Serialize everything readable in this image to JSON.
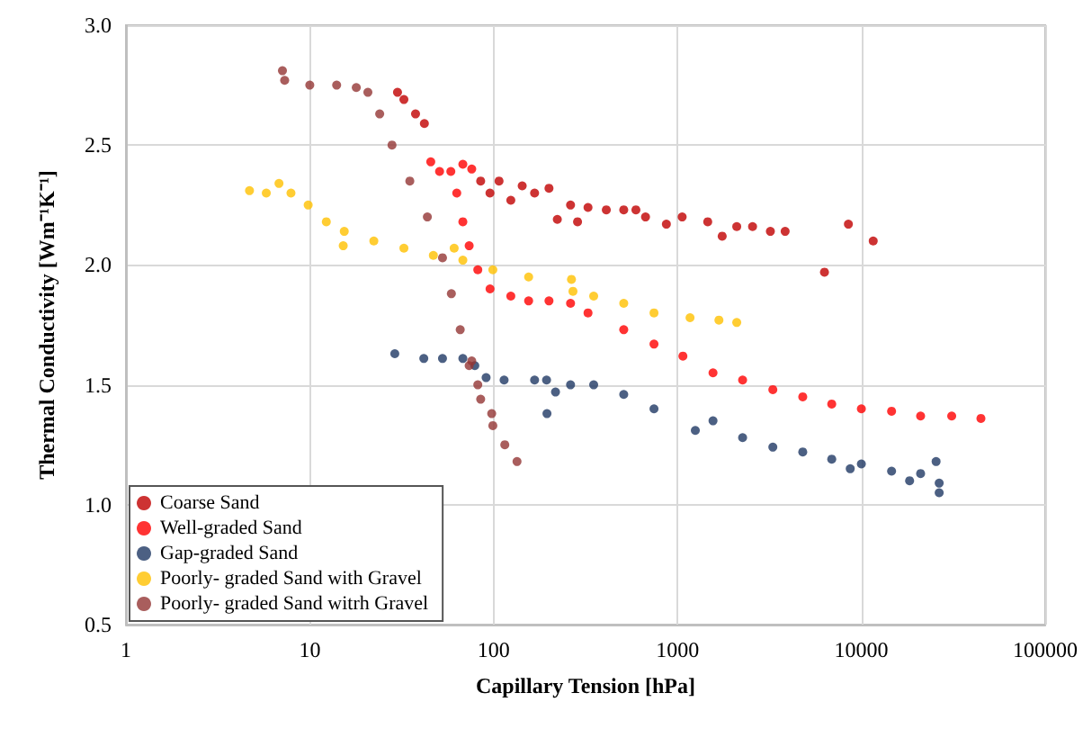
{
  "chart_data": {
    "type": "scatter",
    "xlabel": "Capillary Tension [hPa]",
    "ylabel": "Thermal Conductivity [Wm⁻¹K⁻¹]",
    "log": "x",
    "grid": true,
    "legend": "bottom left",
    "marker": "circle",
    "xlim": [
      1,
      100000
    ],
    "xticks": [
      1,
      10,
      100,
      1000,
      10000,
      100000
    ],
    "ylim": [
      0.5,
      3.0
    ],
    "yticks": [
      0.5,
      {
        "value": 1,
        "label": "1.0"
      },
      1.5,
      {
        "value": 2,
        "label": "2.0"
      },
      2.5,
      {
        "value": 3,
        "label": "3.0"
      }
    ],
    "series": [
      {
        "name": "Coarse Sand",
        "color": "#c00000",
        "x": [
          30,
          32.5,
          37.6,
          42,
          85,
          95.5,
          107,
          124,
          143,
          167,
          200,
          222,
          262,
          286,
          326,
          410,
          510,
          594,
          670,
          870,
          1060,
          1460,
          1750,
          2100,
          2560,
          3200,
          3850,
          6300,
          8500,
          11600
        ],
        "values": [
          2.72,
          2.69,
          2.63,
          2.59,
          2.35,
          2.3,
          2.35,
          2.27,
          2.33,
          2.3,
          2.32,
          2.19,
          2.25,
          2.18,
          2.24,
          2.23,
          2.23,
          2.23,
          2.2,
          2.17,
          2.2,
          2.18,
          2.12,
          2.16,
          2.16,
          2.14,
          2.14,
          1.97,
          2.17,
          2.1
        ]
      },
      {
        "name": "Well-graded Sand",
        "color": "#ff0000",
        "x": [
          45.5,
          50.8,
          58.5,
          68,
          76,
          63,
          68,
          73.6,
          82,
          95.6,
          124,
          155,
          200,
          262,
          326,
          510,
          745,
          1070,
          1560,
          2260,
          3300,
          4800,
          6900,
          10000,
          14600,
          21000,
          31000,
          44700
        ],
        "values": [
          2.43,
          2.39,
          2.39,
          2.42,
          2.4,
          2.3,
          2.18,
          2.08,
          1.98,
          1.9,
          1.87,
          1.85,
          1.85,
          1.84,
          1.8,
          1.73,
          1.67,
          1.62,
          1.55,
          1.52,
          1.48,
          1.45,
          1.42,
          1.4,
          1.39,
          1.37,
          1.37,
          1.36
        ]
      },
      {
        "name": "Gap-graded Sand",
        "color": "#1f3864",
        "x": [
          29,
          41.7,
          52.7,
          68,
          79,
          91,
          114,
          167,
          194,
          195,
          217,
          262,
          350,
          510,
          745,
          1250,
          1560,
          2260,
          3300,
          4800,
          6900,
          8700,
          10000,
          14600,
          18300,
          21000,
          25500,
          26500,
          26500
        ],
        "values": [
          1.63,
          1.61,
          1.61,
          1.61,
          1.58,
          1.53,
          1.52,
          1.52,
          1.52,
          1.38,
          1.47,
          1.5,
          1.5,
          1.46,
          1.4,
          1.31,
          1.35,
          1.28,
          1.24,
          1.22,
          1.19,
          1.15,
          1.17,
          1.14,
          1.1,
          1.13,
          1.18,
          1.09,
          1.05
        ]
      },
      {
        "name": "Poorly- graded Sand with Gravel",
        "color": "#ffc000",
        "x": [
          4.7,
          5.8,
          6.8,
          7.9,
          9.8,
          12.3,
          15.2,
          15.4,
          22.3,
          32.5,
          47,
          61,
          68,
          99,
          155,
          265,
          270,
          350,
          510,
          745,
          1170,
          1680,
          2100
        ],
        "values": [
          2.31,
          2.3,
          2.34,
          2.3,
          2.25,
          2.18,
          2.08,
          2.14,
          2.1,
          2.07,
          2.04,
          2.07,
          2.02,
          1.98,
          1.95,
          1.94,
          1.89,
          1.87,
          1.84,
          1.8,
          1.78,
          1.77,
          1.76
        ]
      },
      {
        "name": "Poorly- graded Sand witrh Gravel",
        "color": "#943634",
        "x": [
          7.1,
          7.3,
          10,
          14,
          17.9,
          20.7,
          24,
          28,
          35,
          43.6,
          52.7,
          58.9,
          65.8,
          73.6,
          76,
          82,
          85,
          97.6,
          99,
          115,
          134
        ],
        "values": [
          2.81,
          2.77,
          2.75,
          2.75,
          2.74,
          2.72,
          2.63,
          2.5,
          2.35,
          2.2,
          2.03,
          1.88,
          1.73,
          1.58,
          1.6,
          1.5,
          1.44,
          1.38,
          1.33,
          1.25,
          1.18
        ]
      }
    ]
  }
}
